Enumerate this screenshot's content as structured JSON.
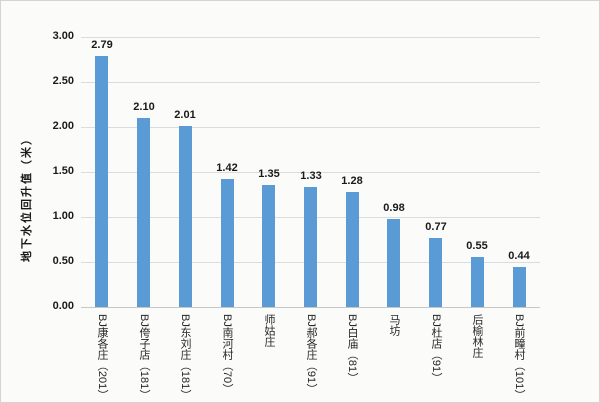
{
  "chart_data": {
    "type": "bar",
    "title": "",
    "xlabel": "",
    "ylabel": "地下水位回升值（米）",
    "categories": [
      "BJ康各庄（201）",
      "BJ侉子店（181）",
      "BJ东刘庄（181）",
      "BJ南河村（70）",
      "师姑庄",
      "BJ郝各庄（91）",
      "BJ白庙（81）",
      "马坊",
      "BJ杜店（91）",
      "后榆林庄",
      "BJ前疃村（101）"
    ],
    "values": [
      2.79,
      2.1,
      2.01,
      1.42,
      1.35,
      1.33,
      1.28,
      0.98,
      0.77,
      0.55,
      0.44
    ],
    "data_labels": [
      "2.79",
      "2.10",
      "2.01",
      "1.42",
      "1.35",
      "1.33",
      "1.28",
      "0.98",
      "0.77",
      "0.55",
      "0.44"
    ],
    "ylim": [
      0,
      3.0
    ],
    "ytick_step": 0.5,
    "yticks": [
      "0.00",
      "0.50",
      "1.00",
      "1.50",
      "2.00",
      "2.50",
      "3.00"
    ],
    "grid": true,
    "legend": false,
    "x_labels_orientation": "vertical",
    "bar_color": "#5b9bd5",
    "gridline_color": "#dcdcdc",
    "axis_line_color": "#c6c6c6",
    "background_color": "#fbfbf9",
    "text_color": "#1a1a1a"
  }
}
